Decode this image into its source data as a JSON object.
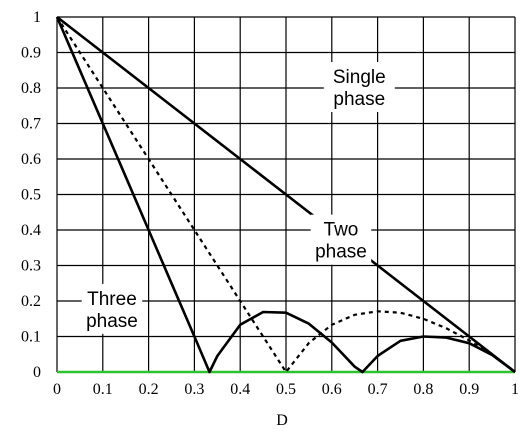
{
  "chart_data": {
    "type": "line",
    "xlabel": "D",
    "ylabel": "",
    "xlim": [
      0,
      1
    ],
    "ylim": [
      0,
      1
    ],
    "grid": true,
    "x_ticks": [
      0,
      0.1,
      0.2,
      0.3,
      0.4,
      0.5,
      0.6,
      0.7,
      0.8,
      0.9,
      1
    ],
    "x_tick_labels": [
      "0",
      "0.1",
      "0.2",
      "0.3",
      "0.4",
      "0.5",
      "0.6",
      "0.7",
      "0.8",
      "0.9",
      "1"
    ],
    "y_ticks": [
      0,
      0.1,
      0.2,
      0.3,
      0.4,
      0.5,
      0.6,
      0.7,
      0.8,
      0.9,
      1
    ],
    "y_tick_labels": [
      "0",
      "0.1",
      "0.2",
      "0.3",
      "0.4",
      "0.5",
      "0.6",
      "0.7",
      "0.8",
      "0.9",
      "1"
    ],
    "series": [
      {
        "style": "solid",
        "x": [
          0,
          0.1,
          0.2,
          0.3,
          0.4,
          0.5,
          0.6,
          0.7,
          0.8,
          0.9,
          1
        ],
        "y": [
          1,
          0.9,
          0.8,
          0.7,
          0.6,
          0.5,
          0.4,
          0.3,
          0.2,
          0.1,
          0
        ]
      },
      {
        "style": "dashed",
        "x": [
          0,
          0.05,
          0.1,
          0.15,
          0.2,
          0.25,
          0.3,
          0.35,
          0.4,
          0.45,
          0.5,
          0.55,
          0.6,
          0.65,
          0.7,
          0.75,
          0.8,
          0.85,
          0.9,
          0.95,
          1
        ],
        "y": [
          1,
          0.9,
          0.8,
          0.7,
          0.6,
          0.5,
          0.4,
          0.3,
          0.2,
          0.1,
          0,
          0.082,
          0.133,
          0.161,
          0.171,
          0.167,
          0.15,
          0.123,
          0.089,
          0.048,
          0
        ]
      },
      {
        "style": "solid",
        "x": [
          0,
          0.05,
          0.1,
          0.15,
          0.2,
          0.25,
          0.3,
          0.333,
          0.35,
          0.4,
          0.45,
          0.5,
          0.55,
          0.6,
          0.65,
          0.667,
          0.7,
          0.75,
          0.8,
          0.85,
          0.9,
          0.95,
          1
        ],
        "y": [
          1,
          0.85,
          0.7,
          0.55,
          0.4,
          0.25,
          0.1,
          0,
          0.045,
          0.133,
          0.169,
          0.167,
          0.136,
          0.083,
          0.015,
          0,
          0.045,
          0.088,
          0.1,
          0.097,
          0.081,
          0.048,
          0
        ]
      }
    ],
    "annotations": [
      {
        "lines": [
          "Single",
          "phase"
        ],
        "x": 0.66,
        "y": 0.8
      },
      {
        "lines": [
          "Two",
          "phase"
        ],
        "x": 0.62,
        "y": 0.37
      },
      {
        "lines": [
          "Three",
          "phase"
        ],
        "x": 0.12,
        "y": 0.175
      }
    ],
    "baseline_color": "#2fc12f"
  }
}
